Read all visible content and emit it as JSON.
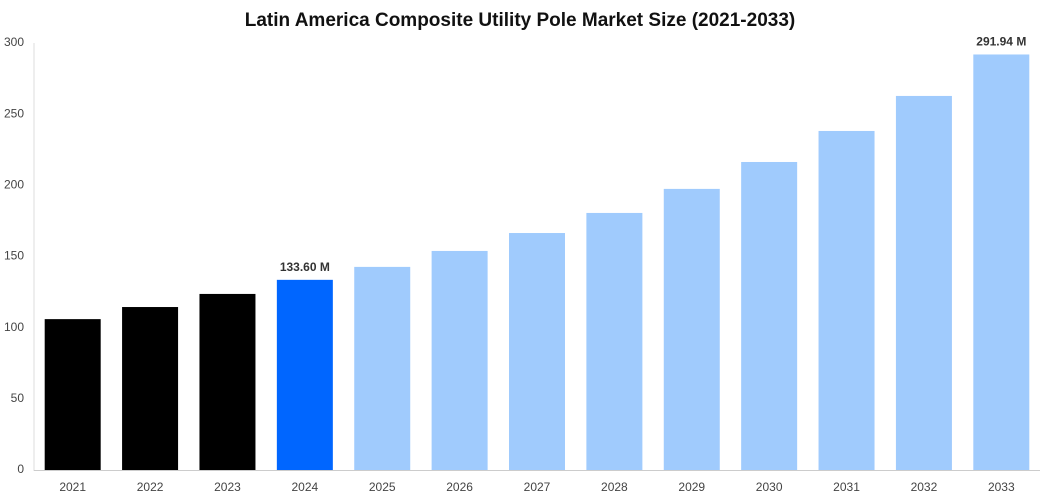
{
  "chart_data": {
    "type": "bar",
    "title": "Latin America Composite Utility Pole Market Size (2021-2033)",
    "categories": [
      "2021",
      "2022",
      "2023",
      "2024",
      "2025",
      "2026",
      "2027",
      "2028",
      "2029",
      "2030",
      "2031",
      "2032",
      "2033"
    ],
    "values": [
      106,
      114.5,
      123.7,
      133.6,
      142.7,
      153.9,
      166.5,
      180.6,
      197.5,
      216.4,
      238.2,
      262.8,
      291.94
    ],
    "value_labels": [
      null,
      null,
      null,
      "133.60 M",
      null,
      null,
      null,
      null,
      null,
      null,
      null,
      null,
      "291.94 M"
    ],
    "colors": [
      "#000000",
      "#000000",
      "#000000",
      "#0066ff",
      "#a0cbfd",
      "#a0cbfd",
      "#a0cbfd",
      "#a0cbfd",
      "#a0cbfd",
      "#a0cbfd",
      "#a0cbfd",
      "#a0cbfd",
      "#a0cbfd"
    ],
    "ylim": [
      0,
      300
    ],
    "yticks": [
      0,
      50,
      100,
      150,
      200,
      250,
      300
    ],
    "grid": false
  }
}
